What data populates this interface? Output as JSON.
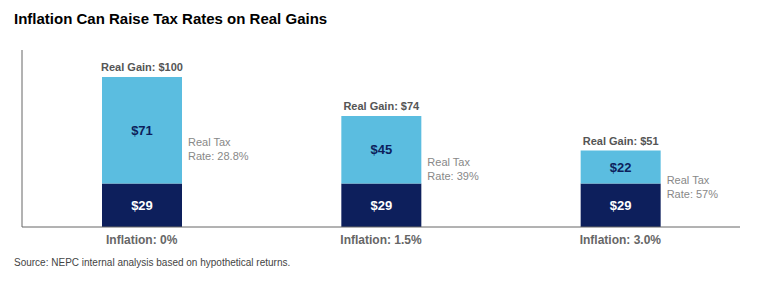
{
  "chart_data": {
    "type": "bar",
    "title": "Inflation Can Raise Tax Rates on Real Gains",
    "source": "Source: NEPC internal analysis based on hypothetical returns.",
    "categories": [
      "Inflation: 0%",
      "Inflation: 1.5%",
      "Inflation: 3.0%"
    ],
    "series": [
      {
        "color": "#0d1f5c",
        "values": [
          29,
          29,
          29
        ],
        "value_labels": [
          "$29",
          "$29",
          "$29"
        ]
      },
      {
        "color": "#5bbde0",
        "values": [
          71,
          45,
          22
        ],
        "value_labels": [
          "$71",
          "$45",
          "$22"
        ]
      }
    ],
    "total_labels": [
      "Real Gain: $100",
      "Real Gain: $74",
      "Real Gain: $51"
    ],
    "annotations": [
      "Real Tax\nRate: 28.8%",
      "Real Tax\nRate: 39%",
      "Real Tax\nRate: 57%"
    ],
    "stacked": true,
    "data_labels": true,
    "ylim": [
      0,
      118
    ],
    "grid": false,
    "tick_labels": "x"
  }
}
